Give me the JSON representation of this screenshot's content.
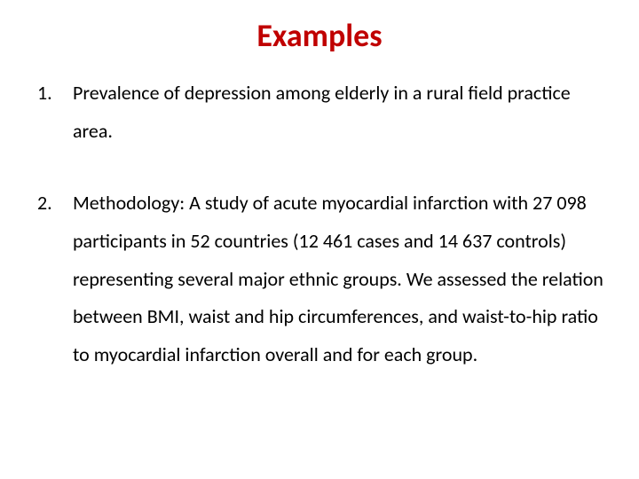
{
  "title": {
    "text": "Examples",
    "color": "#c00000",
    "fontsize": 36,
    "fontweight": 700
  },
  "body": {
    "fontsize": 22,
    "color": "#000000",
    "line_height": 1.95
  },
  "items": [
    "Prevalence of depression among elderly in a rural field practice area.",
    "Methodology: A study of acute myocardial infarction with 27 098 participants in 52 countries (12 461 cases and 14 637 controls) representing several major ethnic groups. We assessed the relation between BMI, waist and hip circumferences, and waist-to-hip ratio to myocardial infarction overall and for each group."
  ],
  "background_color": "#ffffff"
}
